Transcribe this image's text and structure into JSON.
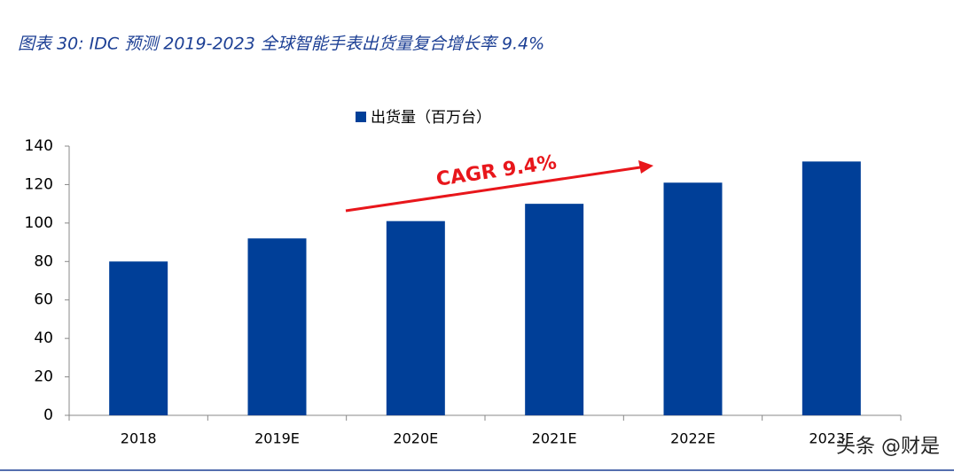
{
  "chart_data": {
    "type": "bar",
    "title": "图表 30: IDC 预测 2019-2023 全球智能手表出货量复合增长率 9.4%",
    "legend_label": "出货量（百万台）",
    "annotation": "CAGR 9.4%",
    "watermark": "头条 @财是",
    "categories": [
      "2018",
      "2019E",
      "2020E",
      "2021E",
      "2022E",
      "2023E"
    ],
    "series": [
      {
        "name": "出货量（百万台）",
        "color": "#003f98",
        "values": [
          80,
          92,
          101,
          110,
          121,
          132
        ]
      }
    ],
    "ylim": [
      0,
      140
    ],
    "yticks": [
      0,
      20,
      40,
      60,
      80,
      100,
      120,
      140
    ],
    "grid": false
  }
}
